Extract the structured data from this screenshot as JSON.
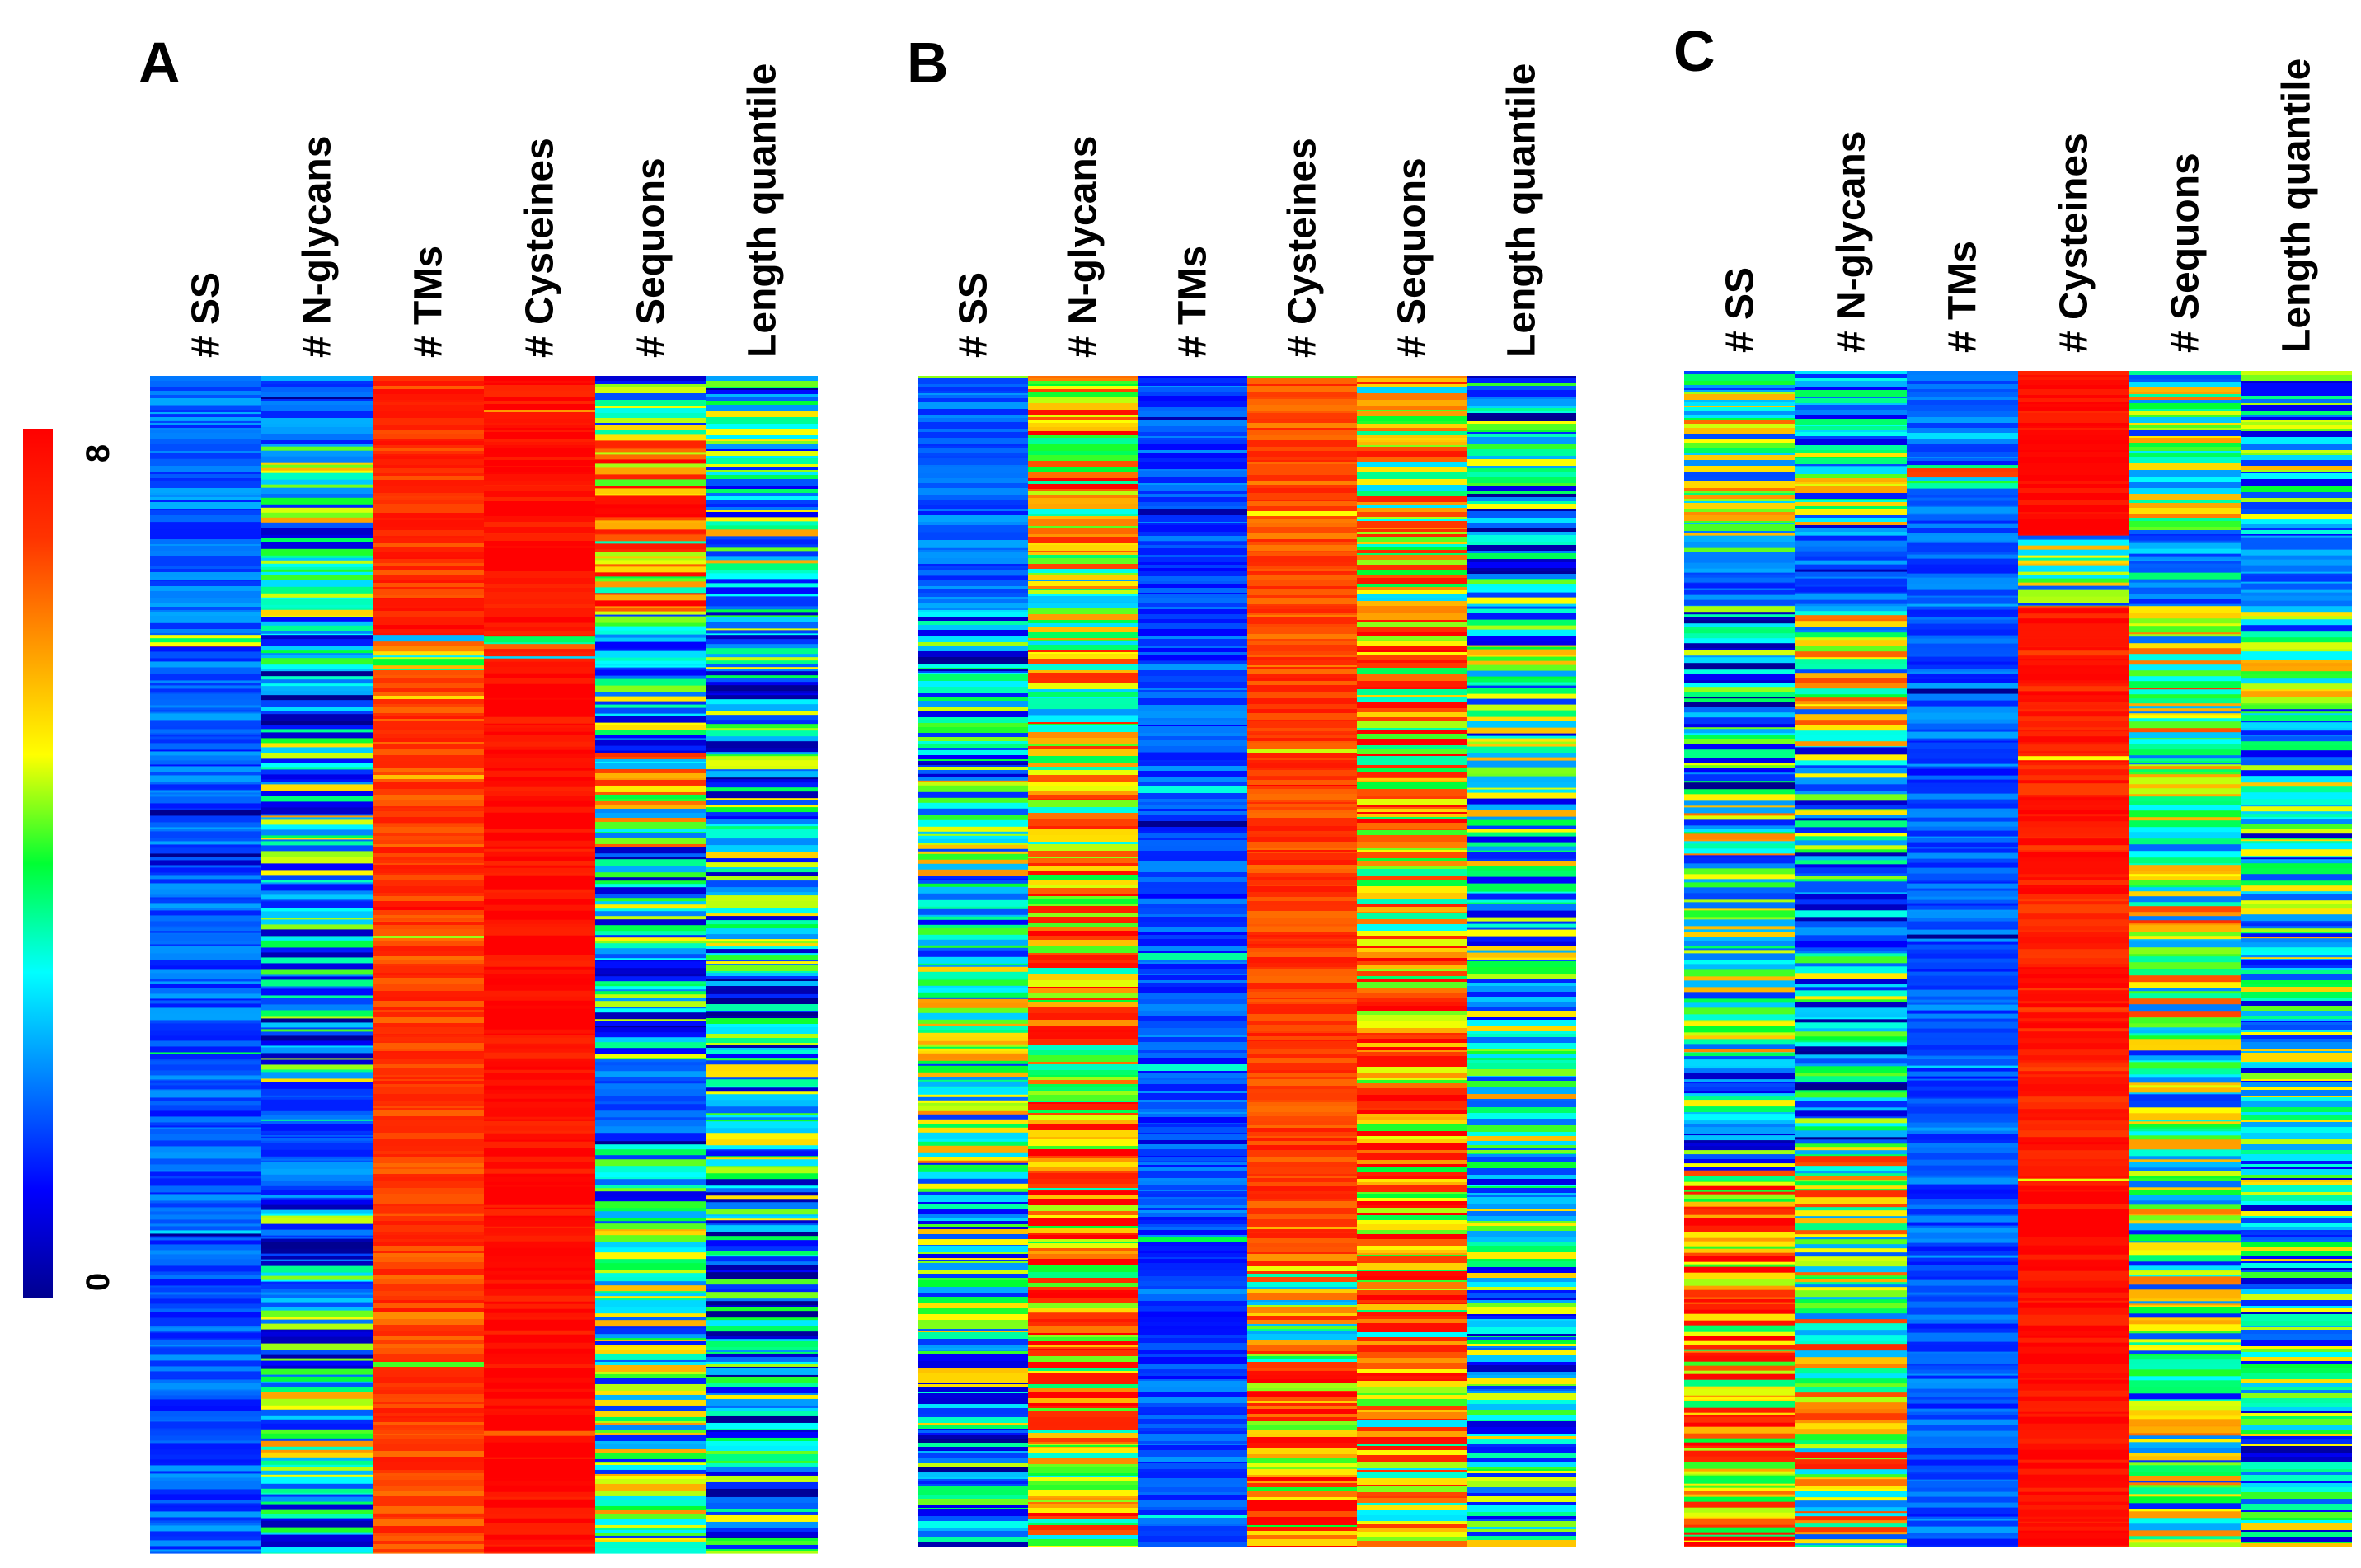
{
  "chart_data": {
    "type": "heatmap",
    "colorbar": {
      "min_label": "0",
      "max_label": "8",
      "vmin": 0,
      "vmax": 8,
      "colormap": "jet",
      "orientation": "vertical"
    },
    "columns": [
      "# SS",
      "# N-glycans",
      "# TMs",
      "# Cysteines",
      "# Sequons",
      "Length quantile"
    ],
    "panels": [
      {
        "id": "A",
        "letter": "A",
        "columns": [
          "# SS",
          "# N-glycans",
          "# TMs",
          "# Cysteines",
          "# Sequons",
          "Length quantile"
        ],
        "segments": [
          [
            [
              0,
              0.22,
              1.8
            ],
            [
              0.22,
              0.23,
              5
            ],
            [
              0.23,
              1,
              1.7
            ]
          ],
          [
            [
              0,
              0.06,
              1.8
            ],
            [
              0.06,
              0.1,
              4.5
            ],
            [
              0.1,
              0.22,
              3
            ],
            [
              0.22,
              0.3,
              2.2
            ],
            [
              0.3,
              0.48,
              3
            ],
            [
              0.48,
              0.6,
              2.4
            ],
            [
              0.6,
              0.7,
              1.7
            ],
            [
              0.7,
              0.85,
              2.4
            ],
            [
              0.85,
              0.95,
              3.5
            ],
            [
              0.95,
              1,
              2.2
            ]
          ],
          [
            [
              0,
              0.22,
              7.2
            ],
            [
              0.22,
              0.25,
              4.5
            ],
            [
              0.25,
              1,
              7
            ]
          ],
          [
            [
              0,
              0.22,
              7.8
            ],
            [
              0.22,
              0.24,
              5
            ],
            [
              0.24,
              1,
              7.8
            ]
          ],
          [
            [
              0,
              0.05,
              3
            ],
            [
              0.05,
              0.12,
              6.5
            ],
            [
              0.12,
              0.2,
              5.8
            ],
            [
              0.2,
              0.32,
              3
            ],
            [
              0.32,
              0.4,
              4.5
            ],
            [
              0.4,
              0.58,
              2.6
            ],
            [
              0.58,
              0.65,
              1.7
            ],
            [
              0.65,
              0.72,
              2.4
            ],
            [
              0.72,
              0.82,
              3.2
            ],
            [
              0.82,
              1,
              3.6
            ]
          ],
          [
            [
              0,
              0.12,
              2.8
            ],
            [
              0.12,
              0.22,
              3.4
            ],
            [
              0.22,
              0.36,
              2.6
            ],
            [
              0.36,
              0.5,
              3
            ],
            [
              0.5,
              0.58,
              2.4
            ],
            [
              0.58,
              0.72,
              2.8
            ],
            [
              0.72,
              0.82,
              2.2
            ],
            [
              0.82,
              1,
              2.6
            ]
          ]
        ]
      },
      {
        "id": "B",
        "letter": "B",
        "columns": [
          "# SS",
          "# N-glycans",
          "# TMs",
          "# Cysteines",
          "# Sequons",
          "Length quantile"
        ],
        "segments": [
          [
            [
              0,
              0.2,
              1.8
            ],
            [
              0.2,
              0.34,
              2.6
            ],
            [
              0.34,
              0.7,
              3.6
            ],
            [
              0.7,
              0.9,
              3.2
            ],
            [
              0.9,
              1,
              2.4
            ]
          ],
          [
            [
              0,
              0.15,
              5.5
            ],
            [
              0.15,
              0.4,
              4.8
            ],
            [
              0.4,
              0.7,
              5.8
            ],
            [
              0.7,
              0.9,
              6.2
            ],
            [
              0.9,
              1,
              5
            ]
          ],
          [
            [
              0,
              1,
              1.6
            ]
          ],
          [
            [
              0,
              0.25,
              6.8
            ],
            [
              0.25,
              0.75,
              7
            ],
            [
              0.75,
              0.85,
              4.8
            ],
            [
              0.85,
              1,
              6.3
            ]
          ],
          [
            [
              0,
              0.2,
              5
            ],
            [
              0.2,
              0.5,
              5.8
            ],
            [
              0.5,
              0.8,
              6.4
            ],
            [
              0.8,
              1,
              5.2
            ]
          ],
          [
            [
              0,
              0.18,
              2.4
            ],
            [
              0.18,
              0.5,
              3.3
            ],
            [
              0.5,
              0.7,
              3.6
            ],
            [
              0.7,
              1,
              3
            ]
          ]
        ]
      },
      {
        "id": "C",
        "letter": "C",
        "columns": [
          "# SS",
          "# N-glycans",
          "# TMs",
          "# Cysteines",
          "# Sequons",
          "Length quantile"
        ],
        "segments": [
          [
            [
              0,
              0.14,
              4
            ],
            [
              0.14,
              0.2,
              1.8
            ],
            [
              0.2,
              0.36,
              2.4
            ],
            [
              0.36,
              0.58,
              3.8
            ],
            [
              0.58,
              0.68,
              2.8
            ],
            [
              0.68,
              1,
              6
            ]
          ],
          [
            [
              0,
              0.14,
              3.4
            ],
            [
              0.14,
              0.2,
              1.8
            ],
            [
              0.2,
              0.32,
              4.2
            ],
            [
              0.32,
              0.55,
              2.8
            ],
            [
              0.55,
              0.66,
              2.4
            ],
            [
              0.66,
              1,
              4.6
            ]
          ],
          [
            [
              0,
              0.08,
              1.7
            ],
            [
              0.08,
              0.1,
              5
            ],
            [
              0.1,
              1,
              1.7
            ]
          ],
          [
            [
              0,
              0.14,
              7.8
            ],
            [
              0.14,
              0.2,
              3.6
            ],
            [
              0.2,
              0.68,
              7.4
            ],
            [
              0.68,
              1,
              7.8
            ]
          ],
          [
            [
              0,
              0.14,
              3.8
            ],
            [
              0.14,
              0.2,
              1.8
            ],
            [
              0.2,
              0.55,
              4.4
            ],
            [
              0.55,
              1,
              3.8
            ]
          ],
          [
            [
              0,
              0.14,
              3.2
            ],
            [
              0.14,
              0.2,
              1.9
            ],
            [
              0.2,
              0.5,
              3.4
            ],
            [
              0.5,
              1,
              3
            ]
          ]
        ]
      }
    ]
  }
}
